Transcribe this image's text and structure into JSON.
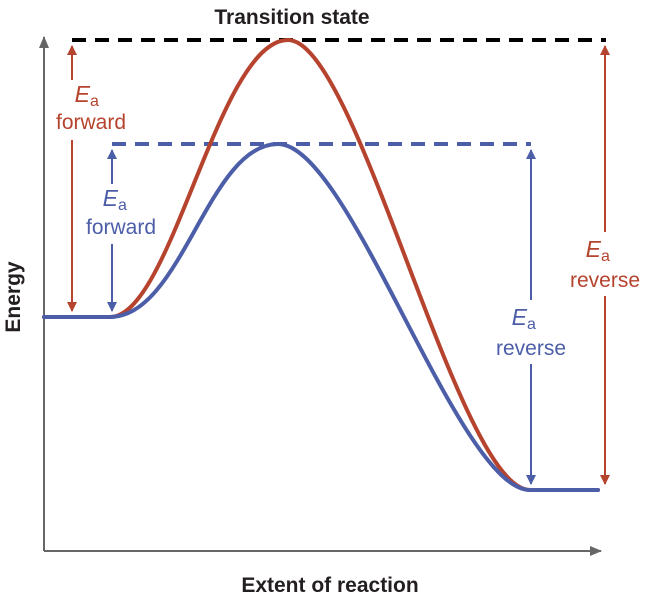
{
  "title": "Transition state",
  "axes": {
    "y_label": "Energy",
    "x_label": "Extent of reaction"
  },
  "colors": {
    "uncatalyzed": "#b6432e",
    "catalyzed": "#4c5ea8",
    "transition_line": "#000000",
    "axis": "#666666",
    "text": "#231f20"
  },
  "labels": {
    "red_forward": {
      "symbol": "E",
      "subscript": "a",
      "text": "forward"
    },
    "red_reverse": {
      "symbol": "E",
      "subscript": "a",
      "text": "reverse"
    },
    "blue_forward": {
      "symbol": "E",
      "subscript": "a",
      "text": "forward"
    },
    "blue_reverse": {
      "symbol": "E",
      "subscript": "a",
      "text": "reverse"
    }
  }
}
